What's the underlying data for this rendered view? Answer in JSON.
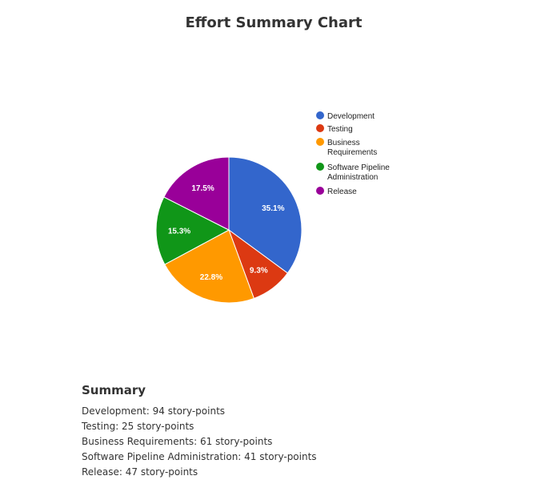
{
  "page": {
    "title": "Effort Summary Chart"
  },
  "chart_data": {
    "type": "pie",
    "title": "",
    "categories": [
      "Development",
      "Testing",
      "Business Requirements",
      "Software Pipeline Administration",
      "Release"
    ],
    "values": [
      94,
      25,
      61,
      41,
      47
    ],
    "slice_labels": [
      "35.1%",
      "9.3%",
      "22.8%",
      "15.3%",
      "17.5%"
    ],
    "colors": [
      "#3366cc",
      "#dc3912",
      "#ff9900",
      "#109618",
      "#990099"
    ],
    "legend": {
      "position": "right",
      "entries": [
        {
          "lines": [
            "Development"
          ]
        },
        {
          "lines": [
            "Testing"
          ]
        },
        {
          "lines": [
            "Business",
            "Requirements"
          ]
        },
        {
          "lines": [
            "Software Pipeline",
            "Administration"
          ]
        },
        {
          "lines": [
            "Release"
          ]
        }
      ]
    }
  },
  "summary": {
    "heading": "Summary",
    "lines": [
      "Development: 94 story-points",
      "Testing: 25 story-points",
      "Business Requirements: 61 story-points",
      "Software Pipeline Administration: 41 story-points",
      "Release: 47 story-points"
    ]
  }
}
